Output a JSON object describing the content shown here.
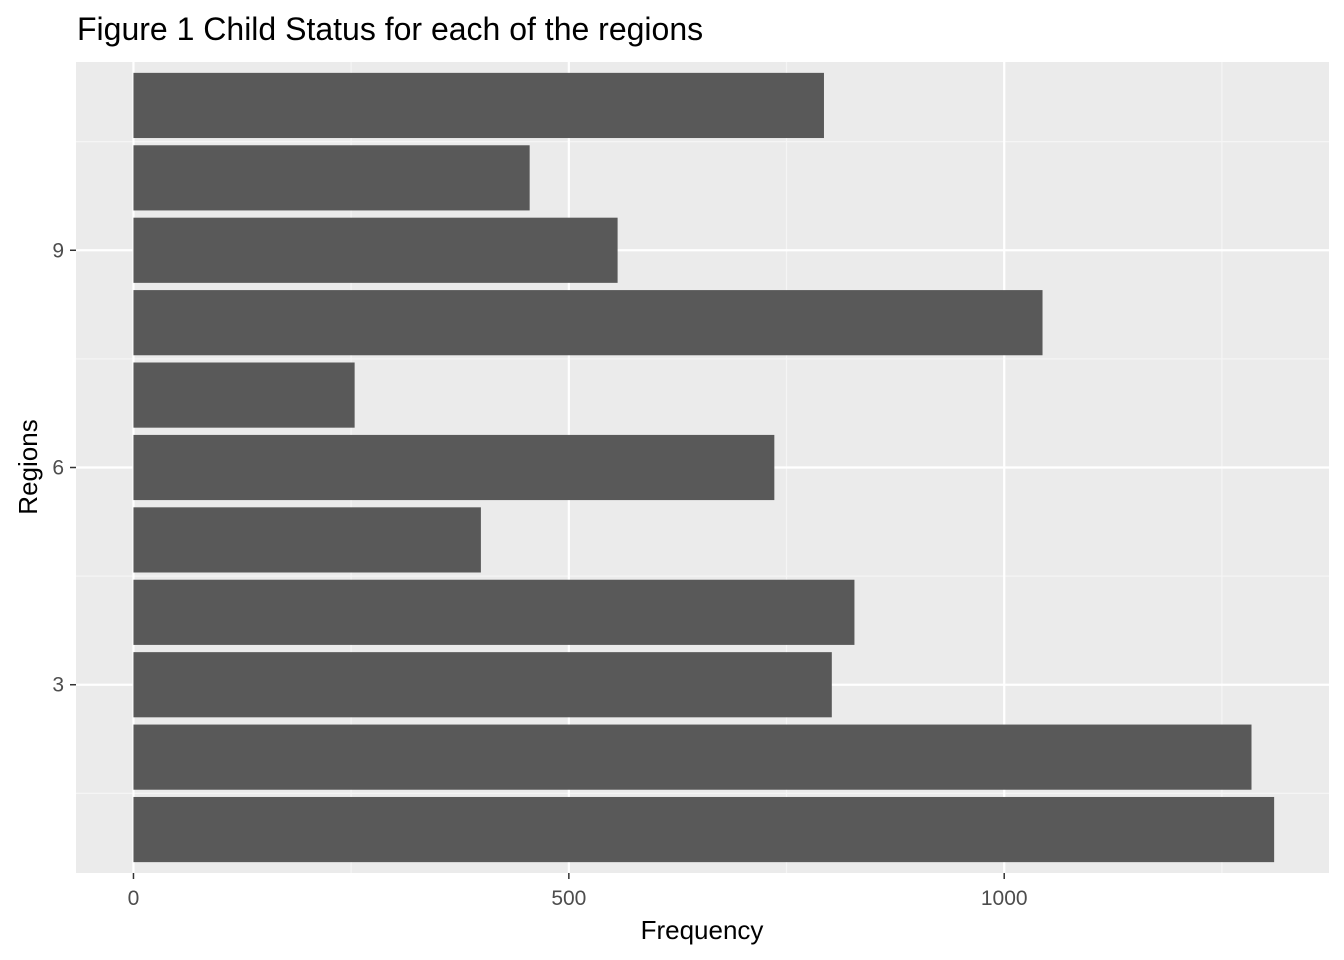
{
  "chart_data": {
    "type": "bar",
    "orientation": "horizontal",
    "title": "Figure 1 Child Status for each of the regions",
    "xlabel": "Frequency",
    "ylabel": "Regions",
    "categories": [
      1,
      2,
      3,
      4,
      5,
      6,
      7,
      8,
      9,
      10,
      11
    ],
    "values": [
      1310,
      1284,
      802,
      828,
      399,
      736,
      254,
      1044,
      556,
      455,
      793
    ],
    "xlim": [
      -66,
      1373
    ],
    "ylim": [
      0.4,
      11.6
    ],
    "x_ticks": [
      0,
      500,
      1000
    ],
    "x_tick_labels": [
      "0",
      "500",
      "1000"
    ],
    "y_ticks": [
      3,
      6,
      9
    ],
    "y_tick_labels": [
      "3",
      "6",
      "9"
    ],
    "grid": true,
    "legend": "none",
    "colors": {
      "bar": "#595959",
      "panel_background": "#ebebeb",
      "grid_major": "#ffffff",
      "grid_minor": "#f5f5f5",
      "tick_text": "#4d4d4d",
      "axis_tick": "#333333"
    }
  }
}
